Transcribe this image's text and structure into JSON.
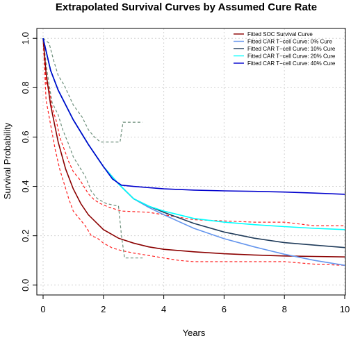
{
  "chart_data": {
    "type": "line",
    "title": "Extrapolated Survival Curves by Assumed Cure Rate",
    "xlabel": "Years",
    "ylabel": "Survival Probability",
    "xlim": [
      0,
      10
    ],
    "ylim": [
      -0.04,
      1.04
    ],
    "x_ticks": [
      0,
      2,
      4,
      6,
      8,
      10
    ],
    "y_ticks": [
      0.0,
      0.2,
      0.4,
      0.6,
      0.8,
      1.0
    ],
    "x_tick_labels": [
      "0",
      "2",
      "4",
      "6",
      "8",
      "10"
    ],
    "y_tick_labels": [
      "0.0",
      "0.2",
      "0.4",
      "0.6",
      "0.8",
      "1.0"
    ],
    "grid": true,
    "legend_position": "top-right",
    "series": [
      {
        "name": "Fitted SOC Survival Curve",
        "color": "#8b0000",
        "style": "solid",
        "points": [
          [
            0,
            1.0
          ],
          [
            0.1,
            0.86
          ],
          [
            0.25,
            0.73
          ],
          [
            0.5,
            0.58
          ],
          [
            0.75,
            0.47
          ],
          [
            1,
            0.39
          ],
          [
            1.25,
            0.33
          ],
          [
            1.5,
            0.285
          ],
          [
            2,
            0.225
          ],
          [
            2.5,
            0.19
          ],
          [
            3,
            0.17
          ],
          [
            3.5,
            0.155
          ],
          [
            4,
            0.145
          ],
          [
            5,
            0.135
          ],
          [
            6,
            0.127
          ],
          [
            7,
            0.122
          ],
          [
            8,
            0.118
          ],
          [
            9,
            0.116
          ],
          [
            10,
            0.114
          ]
        ]
      },
      {
        "name": "Fitted CAR T−cell Curve: 0% Cure",
        "color": "#6495ed",
        "style": "solid",
        "points": [
          [
            0,
            1.0
          ],
          [
            0.25,
            0.87
          ],
          [
            0.5,
            0.79
          ],
          [
            1,
            0.67
          ],
          [
            1.5,
            0.57
          ],
          [
            2,
            0.48
          ],
          [
            2.5,
            0.41
          ],
          [
            3,
            0.35
          ],
          [
            3.5,
            0.315
          ],
          [
            4,
            0.285
          ],
          [
            5,
            0.23
          ],
          [
            6,
            0.188
          ],
          [
            7,
            0.155
          ],
          [
            8,
            0.125
          ],
          [
            9,
            0.1
          ],
          [
            10,
            0.08
          ]
        ]
      },
      {
        "name": "Fitted CAR T−cell Curve: 10% Cure",
        "color": "#1f3b5a",
        "style": "solid",
        "points": [
          [
            0,
            1.0
          ],
          [
            0.25,
            0.87
          ],
          [
            0.5,
            0.79
          ],
          [
            1,
            0.67
          ],
          [
            1.5,
            0.57
          ],
          [
            2,
            0.48
          ],
          [
            2.5,
            0.41
          ],
          [
            3,
            0.35
          ],
          [
            3.5,
            0.32
          ],
          [
            4,
            0.295
          ],
          [
            5,
            0.25
          ],
          [
            6,
            0.215
          ],
          [
            7,
            0.19
          ],
          [
            8,
            0.172
          ],
          [
            9,
            0.162
          ],
          [
            10,
            0.152
          ]
        ]
      },
      {
        "name": "Fitted CAR T−cell Curve: 20% Cure",
        "color": "#00ffff",
        "style": "solid",
        "points": [
          [
            0,
            1.0
          ],
          [
            0.25,
            0.87
          ],
          [
            0.5,
            0.79
          ],
          [
            1,
            0.67
          ],
          [
            1.5,
            0.57
          ],
          [
            2,
            0.48
          ],
          [
            2.5,
            0.41
          ],
          [
            3,
            0.35
          ],
          [
            3.5,
            0.32
          ],
          [
            4,
            0.3
          ],
          [
            5,
            0.27
          ],
          [
            6,
            0.255
          ],
          [
            7,
            0.245
          ],
          [
            8,
            0.237
          ],
          [
            9,
            0.23
          ],
          [
            10,
            0.225
          ]
        ]
      },
      {
        "name": "Fitted CAR T−cell Curve: 40% Cure",
        "color": "#0000cd",
        "style": "solid",
        "points": [
          [
            0,
            1.0
          ],
          [
            0.25,
            0.87
          ],
          [
            0.5,
            0.79
          ],
          [
            1,
            0.67
          ],
          [
            1.5,
            0.57
          ],
          [
            2,
            0.48
          ],
          [
            2.3,
            0.43
          ],
          [
            2.6,
            0.405
          ],
          [
            3,
            0.4
          ],
          [
            4,
            0.39
          ],
          [
            5,
            0.385
          ],
          [
            6,
            0.382
          ],
          [
            7,
            0.38
          ],
          [
            8,
            0.377
          ],
          [
            9,
            0.373
          ],
          [
            10,
            0.368
          ]
        ]
      }
    ],
    "unlabeled_series": [
      {
        "color": "#ff2020",
        "style": "dashed",
        "points": [
          [
            0,
            1.0
          ],
          [
            0.1,
            0.82
          ],
          [
            0.2,
            0.8
          ],
          [
            0.3,
            0.72
          ],
          [
            0.45,
            0.66
          ],
          [
            0.55,
            0.6
          ],
          [
            0.7,
            0.55
          ],
          [
            0.85,
            0.5
          ],
          [
            1,
            0.46
          ],
          [
            1.2,
            0.43
          ],
          [
            1.35,
            0.4
          ],
          [
            1.5,
            0.37
          ],
          [
            1.7,
            0.345
          ],
          [
            1.9,
            0.33
          ],
          [
            2.2,
            0.315
          ],
          [
            2.6,
            0.3
          ],
          [
            3.5,
            0.295
          ],
          [
            4,
            0.285
          ],
          [
            5,
            0.265
          ],
          [
            6,
            0.26
          ],
          [
            7,
            0.255
          ],
          [
            8,
            0.255
          ],
          [
            9,
            0.24
          ],
          [
            10,
            0.24
          ]
        ]
      },
      {
        "color": "#ff2020",
        "style": "dashed",
        "points": [
          [
            0,
            1.0
          ],
          [
            0.1,
            0.75
          ],
          [
            0.25,
            0.65
          ],
          [
            0.4,
            0.55
          ],
          [
            0.55,
            0.47
          ],
          [
            0.7,
            0.41
          ],
          [
            0.85,
            0.35
          ],
          [
            1,
            0.3
          ],
          [
            1.2,
            0.27
          ],
          [
            1.4,
            0.24
          ],
          [
            1.6,
            0.2
          ],
          [
            1.8,
            0.19
          ],
          [
            2,
            0.17
          ],
          [
            2.3,
            0.15
          ],
          [
            2.6,
            0.14
          ],
          [
            3,
            0.13
          ],
          [
            3.5,
            0.12
          ],
          [
            4,
            0.11
          ],
          [
            4.5,
            0.1
          ],
          [
            5,
            0.095
          ],
          [
            6,
            0.095
          ],
          [
            7,
            0.095
          ],
          [
            8,
            0.095
          ],
          [
            9,
            0.085
          ],
          [
            10,
            0.08
          ]
        ]
      },
      {
        "color": "#6b8e7a",
        "style": "dashed",
        "points": [
          [
            0,
            1.0
          ],
          [
            0.2,
            0.98
          ],
          [
            0.35,
            0.91
          ],
          [
            0.5,
            0.85
          ],
          [
            0.7,
            0.81
          ],
          [
            0.85,
            0.77
          ],
          [
            1,
            0.73
          ],
          [
            1.3,
            0.68
          ],
          [
            1.5,
            0.63
          ],
          [
            1.7,
            0.6
          ],
          [
            1.9,
            0.58
          ],
          [
            2.2,
            0.58
          ],
          [
            2.55,
            0.58
          ],
          [
            2.65,
            0.66
          ],
          [
            3,
            0.66
          ],
          [
            3.3,
            0.66
          ]
        ]
      },
      {
        "color": "#6b8e7a",
        "style": "dashed",
        "points": [
          [
            0,
            1.0
          ],
          [
            0.15,
            0.85
          ],
          [
            0.3,
            0.74
          ],
          [
            0.5,
            0.69
          ],
          [
            0.65,
            0.63
          ],
          [
            0.85,
            0.57
          ],
          [
            1,
            0.52
          ],
          [
            1.2,
            0.48
          ],
          [
            1.4,
            0.44
          ],
          [
            1.6,
            0.38
          ],
          [
            1.8,
            0.35
          ],
          [
            2.1,
            0.33
          ],
          [
            2.5,
            0.32
          ],
          [
            2.6,
            0.2
          ],
          [
            2.7,
            0.11
          ],
          [
            3,
            0.11
          ],
          [
            3.3,
            0.11
          ]
        ]
      }
    ]
  }
}
